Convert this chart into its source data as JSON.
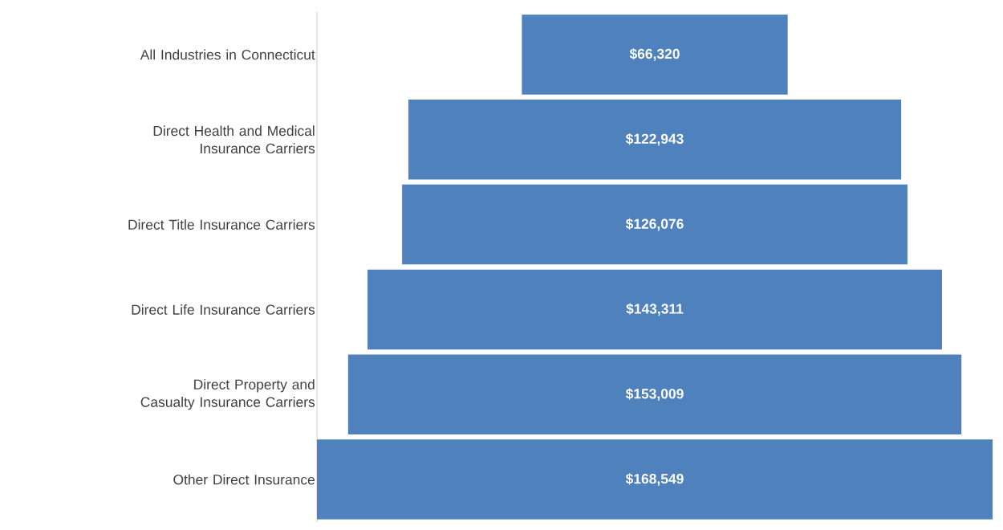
{
  "chart_data": {
    "type": "other",
    "categories": [
      "All Industries in Connecticut",
      "Direct Health and Medical Insurance Carriers",
      "Direct Title Insurance Carriers",
      "Direct Life Insurance Carriers",
      "Direct Property and Casualty Insurance Carriers",
      "Other Direct Insurance"
    ],
    "values": [
      66320,
      122943,
      126076,
      143311,
      153009,
      168549
    ],
    "value_labels": [
      "$66,320",
      "$122,943",
      "$126,076",
      "$143,311",
      "$153,009",
      "$168,549"
    ],
    "color": "#4f81bd"
  }
}
